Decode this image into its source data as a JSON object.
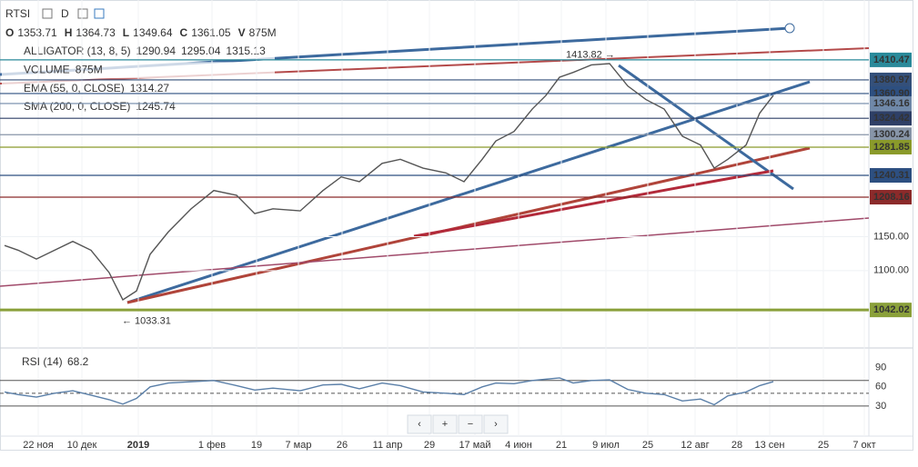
{
  "toolbar": {
    "symbol": "RTSI",
    "interval": "D"
  },
  "ohlcv": [
    {
      "label": "O",
      "value": 1353.71
    },
    {
      "label": "H",
      "value": 1364.73
    },
    {
      "label": "L",
      "value": 1349.64
    },
    {
      "label": "C",
      "value": 1361.05
    },
    {
      "label": "V",
      "value": "875M"
    }
  ],
  "indicators": [
    {
      "name": "ALLIGATOR (13, 8, 5)",
      "values": [
        {
          "value": 1290.94,
          "color": "#3a7bbf"
        },
        {
          "value": 1295.04,
          "color": "#b0442f"
        },
        {
          "value": 1315.13,
          "color": "#3f9a54"
        }
      ]
    },
    {
      "name": "VOLUME",
      "values": [
        {
          "value": "875M",
          "color": "#9ab0c6"
        }
      ]
    },
    {
      "name": "EMA (55, 0, CLOSE)",
      "values": [
        {
          "value": 1314.27,
          "color": "#2f8f73"
        }
      ]
    },
    {
      "name": "SMA (200, 0, CLOSE)",
      "values": [
        {
          "value": 1245.74,
          "color": "#b22a3a"
        }
      ]
    }
  ],
  "controls": [
    "‹",
    "+",
    "−",
    "›"
  ],
  "chart_data": [
    {
      "type": "line",
      "x": [
        1.25,
        5,
        10,
        15,
        20,
        25,
        30,
        33.75,
        37.5,
        41.25,
        46.25,
        52.5,
        58.75,
        65,
        70,
        75,
        82.5,
        88.75,
        93.75,
        98.75,
        105,
        110,
        116.25,
        122.5,
        127.5,
        132.5,
        136.25,
        141.25,
        146.25,
        150,
        153.75,
        157.5,
        162.5,
        167.5,
        172.5,
        177.5,
        182.5,
        187.5,
        192.5,
        196.25,
        200,
        205,
        208.75,
        212.5
      ],
      "series": [
        {
          "name": "RTSI",
          "color": "#555555",
          "values": [
            1137,
            1130,
            1117,
            1130,
            1143,
            1130,
            1097,
            1057,
            1070,
            1124,
            1157,
            1191,
            1218,
            1211,
            1184,
            1191,
            1188,
            1218,
            1238,
            1231,
            1258,
            1264,
            1251,
            1244,
            1231,
            1264,
            1291,
            1305,
            1338,
            1358,
            1385,
            1392,
            1403,
            1405,
            1372,
            1352,
            1338,
            1298,
            1285,
            1251,
            1264,
            1285,
            1332,
            1358
          ]
        }
      ],
      "xlim": [
        0,
        240
      ],
      "xticks": [
        {
          "value": 10.5,
          "label": "22 ноя"
        },
        {
          "value": 22.5,
          "label": "10 дек"
        },
        {
          "value": 38,
          "label": "2019"
        },
        {
          "value": 58.25,
          "label": "1 фев"
        },
        {
          "value": 70.5,
          "label": "19"
        },
        {
          "value": 82,
          "label": "7 мар"
        },
        {
          "value": 94,
          "label": "26"
        },
        {
          "value": 106.5,
          "label": "11 апр"
        },
        {
          "value": 118,
          "label": "29"
        },
        {
          "value": 130.5,
          "label": "17 май"
        },
        {
          "value": 142.5,
          "label": "4 июн"
        },
        {
          "value": 154.25,
          "label": "21"
        },
        {
          "value": 166.5,
          "label": "9 июл"
        },
        {
          "value": 178,
          "label": "25"
        },
        {
          "value": 191,
          "label": "12 авг"
        },
        {
          "value": 202.5,
          "label": "28"
        },
        {
          "value": 211.5,
          "label": "13 сен"
        },
        {
          "value": 226.25,
          "label": "25"
        },
        {
          "value": 237.5,
          "label": "7 окт"
        }
      ],
      "ylim": [
        990,
        1492
      ],
      "yticks": [
        {
          "value": 1100,
          "label": "1100.00"
        },
        {
          "value": 1150,
          "label": "1150.00"
        }
      ],
      "price_levels": [
        {
          "value": 1410.47,
          "color": "#2a8a9a"
        },
        {
          "value": 1380.97,
          "color": "#34507a"
        },
        {
          "value": {
            "value": 1360.9,
            "label": "1360.90"
          },
          "color": "#2d4f80"
        },
        {
          "value": 1346.16,
          "color": "#6f88a8"
        },
        {
          "value": 1324.42,
          "color": "#2e3f66"
        },
        {
          "value": 1300.24,
          "color": "#8795a8"
        },
        {
          "value": 1281.85,
          "color": "#8a9a2a"
        },
        {
          "value": 1240.31,
          "color": "#2d4f80"
        },
        {
          "value": 1208.16,
          "color": "#8b2a2a"
        },
        {
          "value": 1042.02,
          "color": "#8aa03a"
        }
      ],
      "high_label": {
        "value": 1413.82,
        "label": "1413.82 →"
      },
      "low_label": {
        "value": 1033.31,
        "label": "← 1033.31"
      }
    },
    {
      "type": "line",
      "title": "RSI (14)",
      "last": 68.2,
      "x": [
        1.25,
        5,
        10,
        15,
        20,
        25,
        30,
        33.75,
        37.5,
        41.25,
        46.25,
        52.5,
        58.75,
        65,
        70,
        75,
        82.5,
        88.75,
        93.75,
        98.75,
        105,
        110,
        116.25,
        122.5,
        127.5,
        132.5,
        136.25,
        141.25,
        146.25,
        150,
        153.75,
        157.5,
        162.5,
        167.5,
        172.5,
        177.5,
        182.5,
        187.5,
        192.5,
        196.25,
        200,
        205,
        208.75,
        212.5
      ],
      "series": [
        {
          "name": "RSI",
          "color": "#5a7fa8",
          "values": [
            52,
            48,
            44,
            50,
            54,
            47,
            40,
            33,
            42,
            60,
            66,
            68,
            70,
            62,
            55,
            58,
            54,
            63,
            64,
            57,
            66,
            62,
            52,
            50,
            48,
            60,
            66,
            65,
            70,
            72,
            74,
            66,
            70,
            71,
            56,
            50,
            48,
            38,
            41,
            32,
            46,
            52,
            62,
            68.2
          ]
        }
      ],
      "xlim": [
        0,
        240
      ],
      "ylim": [
        -17,
        118
      ],
      "yticks": [
        30,
        60,
        90
      ],
      "levels": [
        70,
        50,
        30
      ]
    }
  ]
}
